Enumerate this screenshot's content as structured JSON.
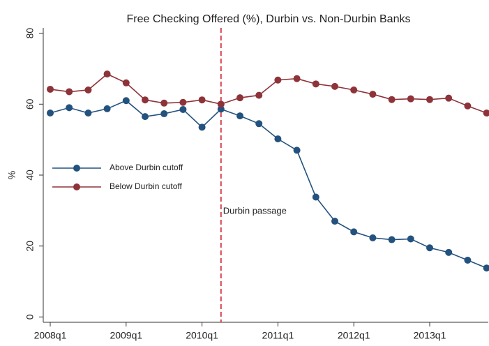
{
  "chart_data": {
    "type": "line",
    "title": "Free Checking Offered (%), Durbin vs. Non-Durbin Banks",
    "y_label": "%",
    "categories": [
      "2008q1",
      null,
      null,
      null,
      "2009q1",
      null,
      null,
      null,
      "2010q1",
      null,
      null,
      null,
      "2011q1",
      null,
      null,
      null,
      "2012q1",
      null,
      null,
      null,
      "2013q1",
      null,
      null,
      null
    ],
    "series": [
      {
        "name": "Above Durbin cutoff",
        "color": "#23527f",
        "values": [
          57.5,
          59,
          57.5,
          58.7,
          61,
          56.5,
          57.3,
          58.5,
          53.5,
          58.6,
          56.7,
          54.5,
          50.2,
          47,
          33.8,
          27,
          24,
          22.3,
          21.8,
          22,
          19.5,
          18.2,
          16,
          13.8
        ]
      },
      {
        "name": "Below Durbin cutoff",
        "color": "#8e3339",
        "values": [
          64.2,
          63.5,
          64,
          68.5,
          66,
          61.2,
          60.3,
          60.5,
          61.2,
          60,
          61.8,
          62.5,
          66.8,
          67.2,
          65.7,
          65,
          64,
          62.8,
          61.3,
          61.5,
          61.3,
          61.7,
          59.5,
          57.5
        ]
      }
    ],
    "ylim": [
      -1.5,
      81.5
    ],
    "yticks": [
      0,
      20,
      40,
      60,
      80
    ],
    "annotation": {
      "text": "Durbin passage",
      "category_index": 9,
      "color": "#d9414f"
    },
    "legend": "left"
  }
}
